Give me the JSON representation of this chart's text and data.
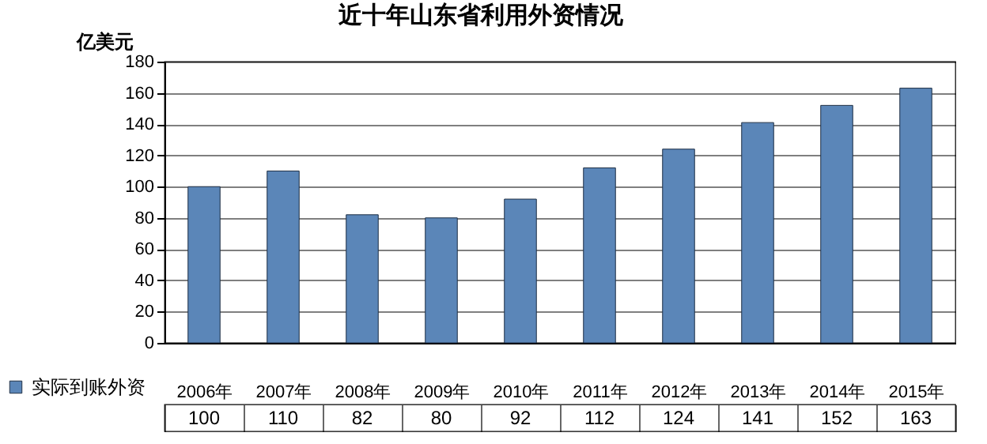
{
  "chart_data": {
    "type": "bar",
    "title": "近十年山东省利用外资情况",
    "ylabel": "亿美元",
    "categories": [
      "2006年",
      "2007年",
      "2008年",
      "2009年",
      "2010年",
      "2011年",
      "2012年",
      "2013年",
      "2014年",
      "2015年"
    ],
    "series": [
      {
        "name": "实际到账外资",
        "color": "#5b86b8",
        "values": [
          100,
          110,
          82,
          80,
          92,
          112,
          124,
          141,
          152,
          163
        ]
      }
    ],
    "ylim": [
      0,
      180
    ],
    "yticks": [
      0,
      20,
      40,
      60,
      80,
      100,
      120,
      140,
      160,
      180
    ],
    "grid": "y",
    "legend": "bottom left",
    "data_labels": true
  }
}
